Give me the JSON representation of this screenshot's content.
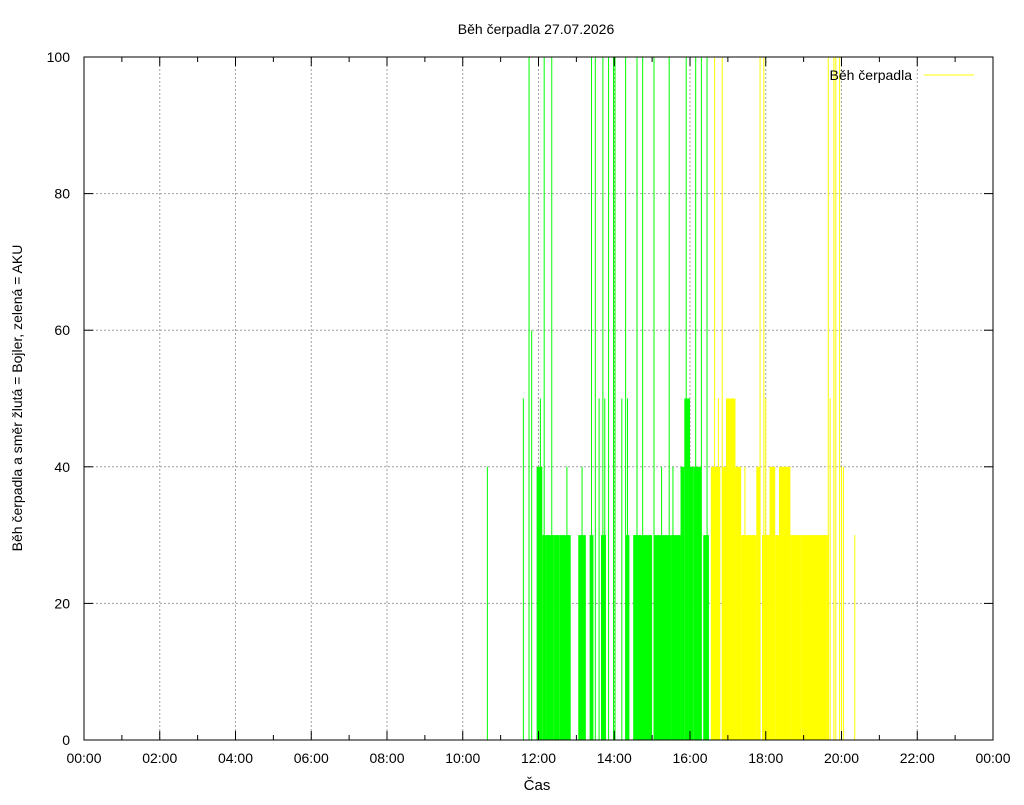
{
  "chart_data": {
    "type": "bar",
    "title": "Běh čerpadla 27.07.2026",
    "xlabel": "Čas",
    "ylabel": "Běh čerpadla a směr žlutá = Bojler, zelená = AKU",
    "xlim": [
      0,
      24
    ],
    "ylim": [
      0,
      100
    ],
    "x_ticks": [
      "00:00",
      "02:00",
      "04:00",
      "06:00",
      "08:00",
      "10:00",
      "12:00",
      "14:00",
      "16:00",
      "18:00",
      "20:00",
      "22:00",
      "00:00"
    ],
    "y_ticks": [
      "0",
      "20",
      "40",
      "60",
      "80",
      "100"
    ],
    "grid": true,
    "legend_position": "top-right",
    "legend": [
      {
        "label": "Běh čerpadla",
        "color": "#ffff00"
      }
    ],
    "colors": {
      "aku": "#00ff00",
      "bojler": "#ffff00"
    },
    "series": [
      {
        "color": "#00ff00",
        "spikes": [
          [
            10.65,
            40
          ],
          [
            11.6,
            50
          ],
          [
            11.75,
            100
          ],
          [
            11.82,
            60
          ],
          [
            12.05,
            50
          ],
          [
            12.15,
            100
          ],
          [
            12.35,
            100
          ],
          [
            12.75,
            40
          ],
          [
            13.15,
            40
          ],
          [
            13.4,
            100
          ],
          [
            13.5,
            100
          ],
          [
            13.6,
            50
          ],
          [
            13.7,
            100
          ],
          [
            13.75,
            50
          ],
          [
            13.85,
            100
          ],
          [
            13.98,
            100
          ],
          [
            14.02,
            100
          ],
          [
            14.2,
            50
          ],
          [
            14.3,
            100
          ],
          [
            14.35,
            50
          ],
          [
            14.6,
            100
          ],
          [
            14.75,
            100
          ],
          [
            15.05,
            100
          ],
          [
            15.25,
            40
          ],
          [
            15.45,
            100
          ],
          [
            15.55,
            40
          ],
          [
            15.9,
            100
          ],
          [
            16.15,
            100
          ],
          [
            16.3,
            100
          ],
          [
            16.45,
            100
          ]
        ],
        "segments": [
          [
            11.95,
            12.1,
            40
          ],
          [
            12.1,
            12.2,
            30
          ],
          [
            12.2,
            12.4,
            30
          ],
          [
            12.4,
            12.55,
            30
          ],
          [
            12.55,
            12.75,
            30
          ],
          [
            12.75,
            12.85,
            30
          ],
          [
            13.05,
            13.25,
            30
          ],
          [
            13.35,
            13.45,
            30
          ],
          [
            13.65,
            13.78,
            30
          ],
          [
            14.3,
            14.4,
            30
          ],
          [
            14.5,
            15.0,
            30
          ],
          [
            15.05,
            15.5,
            30
          ],
          [
            15.5,
            15.75,
            30
          ],
          [
            15.75,
            15.85,
            40
          ],
          [
            15.85,
            16.0,
            50
          ],
          [
            16.0,
            16.1,
            40
          ],
          [
            16.1,
            16.3,
            40
          ],
          [
            16.35,
            16.5,
            30
          ]
        ]
      },
      {
        "color": "#ffff00",
        "spikes": [
          [
            16.65,
            100
          ],
          [
            16.75,
            50
          ],
          [
            16.85,
            100
          ],
          [
            17.45,
            40
          ],
          [
            17.85,
            100
          ],
          [
            17.95,
            100
          ],
          [
            18.0,
            50
          ],
          [
            18.5,
            40
          ],
          [
            19.65,
            100
          ],
          [
            19.7,
            50
          ],
          [
            19.8,
            100
          ],
          [
            19.85,
            100
          ],
          [
            19.95,
            100
          ],
          [
            20.0,
            40
          ],
          [
            20.05,
            40
          ],
          [
            20.35,
            30
          ]
        ],
        "segments": [
          [
            16.55,
            16.8,
            40
          ],
          [
            16.85,
            16.95,
            40
          ],
          [
            16.95,
            17.2,
            50
          ],
          [
            17.2,
            17.35,
            40
          ],
          [
            17.35,
            17.75,
            30
          ],
          [
            17.75,
            17.85,
            40
          ],
          [
            17.9,
            18.1,
            30
          ],
          [
            18.1,
            18.25,
            40
          ],
          [
            18.25,
            18.35,
            30
          ],
          [
            18.35,
            18.65,
            40
          ],
          [
            18.65,
            18.95,
            30
          ],
          [
            18.95,
            19.6,
            30
          ],
          [
            19.6,
            19.67,
            30
          ]
        ]
      }
    ]
  }
}
